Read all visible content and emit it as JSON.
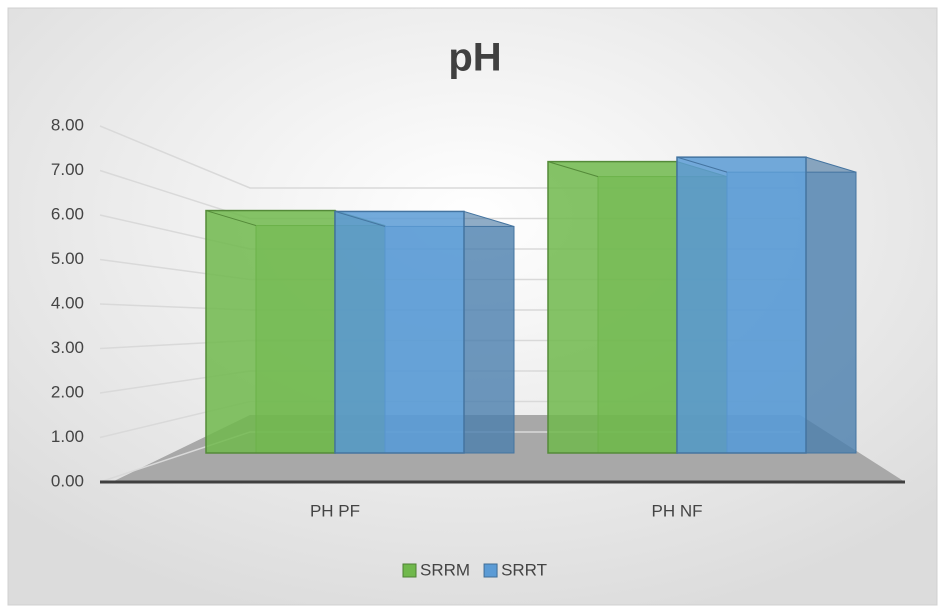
{
  "chart_data": {
    "type": "bar3d",
    "title": "pH",
    "categories": [
      "PH PF",
      "PH NF"
    ],
    "series": [
      {
        "name": "SRRM",
        "color": "#70b84c",
        "values": [
          6.1,
          7.2
        ]
      },
      {
        "name": "SRRT",
        "color": "#5b9bd5",
        "values": [
          6.08,
          7.3
        ]
      }
    ],
    "ylim": [
      0,
      8
    ],
    "yticks": [
      {
        "value": 0,
        "label": "0.00"
      },
      {
        "value": 1,
        "label": "1.00"
      },
      {
        "value": 2,
        "label": "2.00"
      },
      {
        "value": 3,
        "label": "3.00"
      },
      {
        "value": 4,
        "label": "4.00"
      },
      {
        "value": 5,
        "label": "5.00"
      },
      {
        "value": 6,
        "label": "6.00"
      },
      {
        "value": 7,
        "label": "7.00"
      },
      {
        "value": 8,
        "label": "8.00"
      }
    ],
    "grid": true,
    "legend": "bottom"
  }
}
